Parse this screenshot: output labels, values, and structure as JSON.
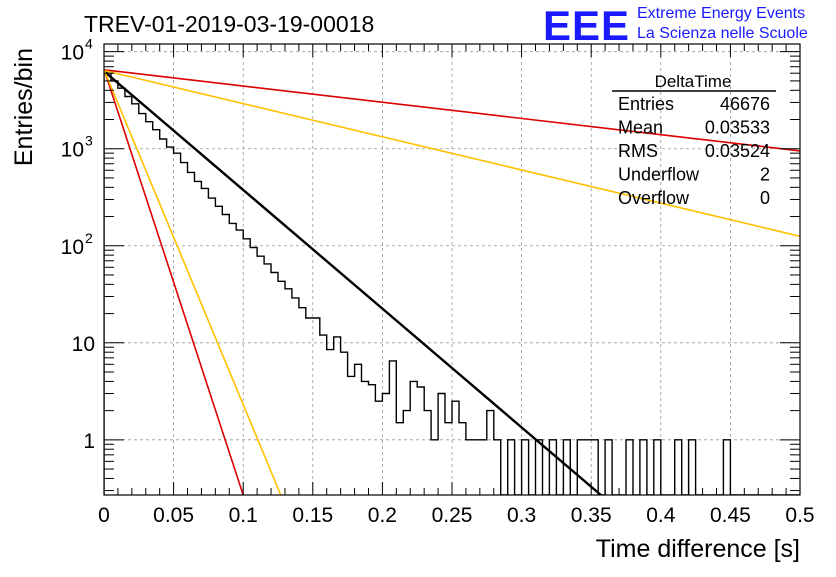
{
  "header": {
    "title": "TREV-01-2019-03-19-00018",
    "logo_text": "EEE",
    "logo_line1": "Extreme Energy Events",
    "logo_line2": "La Scienza nelle Scuole",
    "logo_color": "#1a1aff"
  },
  "stats_box": {
    "title": "DeltaTime",
    "rows": [
      {
        "label": "Entries",
        "value": "46676"
      },
      {
        "label": "Mean",
        "value": "0.03533"
      },
      {
        "label": "RMS",
        "value": "0.03524"
      },
      {
        "label": "Underflow",
        "value": "2"
      },
      {
        "label": "Overflow",
        "value": "0"
      }
    ]
  },
  "chart_data": {
    "type": "line",
    "title": "TREV-01-2019-03-19-00018",
    "xlabel": "Time difference [s]",
    "ylabel": "Entries/bin",
    "xlim": [
      0,
      0.5
    ],
    "ylim": [
      0.27,
      12000
    ],
    "ylog": true,
    "grid": true,
    "x_ticks": [
      0,
      0.05,
      0.1,
      0.15,
      0.2,
      0.25,
      0.3,
      0.35,
      0.4,
      0.45,
      0.5
    ],
    "x_tick_labels": [
      "0",
      "0.05",
      "0.1",
      "0.15",
      "0.2",
      "0.25",
      "0.3",
      "0.35",
      "0.4",
      "0.45",
      "0.5"
    ],
    "y_ticks": [
      1,
      10,
      100,
      1000,
      10000
    ],
    "y_tick_labels": [
      {
        "base": "1",
        "exp": ""
      },
      {
        "base": "10",
        "exp": ""
      },
      {
        "base": "10",
        "exp": "2"
      },
      {
        "base": "10",
        "exp": "3"
      },
      {
        "base": "10",
        "exp": "4"
      }
    ],
    "histogram": {
      "bin_width": 0.005,
      "color": "#000000",
      "counts": [
        6200,
        5000,
        4200,
        3450,
        2900,
        2300,
        1900,
        1570,
        1260,
        1040,
        900,
        720,
        570,
        460,
        390,
        310,
        255,
        210,
        170,
        145,
        118,
        96,
        78,
        65,
        53,
        43,
        36,
        29,
        23,
        18,
        18,
        12,
        8.5,
        11.5,
        8,
        4.5,
        6,
        4,
        3.7,
        2.5,
        3,
        6.5,
        1.5,
        2,
        4,
        3.5,
        2,
        1,
        3,
        1.5,
        2.5,
        1.5,
        1,
        1,
        1,
        2,
        3,
        2,
        0.05,
        0.05,
        0.05,
        0.05,
        0.05,
        0.05,
        0.05,
        0.05,
        0.05,
        0.05,
        0.05,
        0.05,
        0.05,
        0.05,
        0.05,
        0.05,
        0.05,
        0.05,
        0.05,
        0.05,
        0.05,
        0.05,
        0.05,
        0.05,
        0.05,
        0.05,
        0.05,
        0.05,
        0.05,
        0.05,
        0.05,
        0.05,
        0.05,
        0.05,
        0.05,
        0.05,
        0.05,
        0.05,
        0.05,
        0.05,
        0.05,
        0.05
      ],
      "tail": [
        {
          "x0": 0.28,
          "x1": 0.285,
          "c": 1
        },
        {
          "x0": 0.285,
          "x1": 0.29,
          "c": 0.05
        },
        {
          "x0": 0.29,
          "x1": 0.295,
          "c": 1
        },
        {
          "x0": 0.295,
          "x1": 0.3,
          "c": 0.05
        },
        {
          "x0": 0.3,
          "x1": 0.305,
          "c": 1
        },
        {
          "x0": 0.305,
          "x1": 0.31,
          "c": 0.05
        },
        {
          "x0": 0.31,
          "x1": 0.315,
          "c": 1
        },
        {
          "x0": 0.315,
          "x1": 0.32,
          "c": 0.05
        },
        {
          "x0": 0.32,
          "x1": 0.325,
          "c": 1
        },
        {
          "x0": 0.325,
          "x1": 0.33,
          "c": 0.05
        },
        {
          "x0": 0.33,
          "x1": 0.335,
          "c": 1
        },
        {
          "x0": 0.335,
          "x1": 0.34,
          "c": 0.05
        },
        {
          "x0": 0.34,
          "x1": 0.355,
          "c": 1
        },
        {
          "x0": 0.355,
          "x1": 0.36,
          "c": 0.05
        },
        {
          "x0": 0.36,
          "x1": 0.365,
          "c": 1
        },
        {
          "x0": 0.365,
          "x1": 0.375,
          "c": 0.05
        },
        {
          "x0": 0.375,
          "x1": 0.38,
          "c": 1
        },
        {
          "x0": 0.38,
          "x1": 0.385,
          "c": 0.05
        },
        {
          "x0": 0.385,
          "x1": 0.39,
          "c": 1
        },
        {
          "x0": 0.39,
          "x1": 0.395,
          "c": 0.05
        },
        {
          "x0": 0.395,
          "x1": 0.4,
          "c": 1
        },
        {
          "x0": 0.4,
          "x1": 0.41,
          "c": 0.05
        },
        {
          "x0": 0.41,
          "x1": 0.415,
          "c": 1
        },
        {
          "x0": 0.415,
          "x1": 0.42,
          "c": 0.05
        },
        {
          "x0": 0.42,
          "x1": 0.425,
          "c": 1
        },
        {
          "x0": 0.425,
          "x1": 0.445,
          "c": 0.05
        },
        {
          "x0": 0.445,
          "x1": 0.45,
          "c": 1
        },
        {
          "x0": 0.45,
          "x1": 0.5,
          "c": 0.05
        }
      ]
    },
    "series": [
      {
        "color": "#000000",
        "width": 2.4,
        "points": [
          [
            0,
            6300
          ],
          [
            0.357,
            0.27
          ]
        ]
      },
      {
        "color": "#dd0000",
        "width": 1.6,
        "points": [
          [
            0,
            6500
          ],
          [
            0.5,
            950
          ]
        ]
      },
      {
        "color": "#ffc000",
        "width": 1.6,
        "points": [
          [
            0,
            6400
          ],
          [
            0.5,
            125
          ]
        ]
      },
      {
        "color": "#dd0000",
        "width": 1.6,
        "points": [
          [
            0,
            6600
          ],
          [
            0.1,
            0.27
          ]
        ]
      },
      {
        "color": "#ffc000",
        "width": 1.6,
        "points": [
          [
            0,
            6500
          ],
          [
            0.127,
            0.27
          ]
        ]
      }
    ]
  }
}
